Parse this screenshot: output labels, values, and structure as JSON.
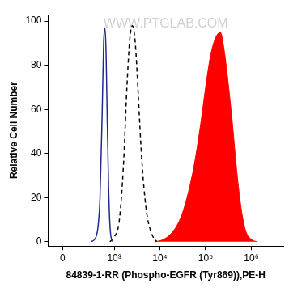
{
  "chart_data": {
    "type": "line",
    "x_label": "84839-1-RR (Phospho-EGFR (Tyr869)),PE-H",
    "y_label": "Relative Cell Number",
    "annotations": [
      "WWW.PTGLAB.COM"
    ],
    "log": "x",
    "grid": false,
    "xlim": [
      -120,
      5000000
    ],
    "xticks": [
      {
        "value": 0,
        "label": "0"
      },
      {
        "value": 1000,
        "label": "10³"
      },
      {
        "value": 10000,
        "label": "10⁴"
      },
      {
        "value": 100000,
        "label": "10⁵"
      },
      {
        "value": 1000000,
        "label": "10⁶"
      }
    ],
    "ylim": [
      -2,
      103
    ],
    "yticks": [
      0,
      20,
      40,
      60,
      80,
      100
    ],
    "series": [
      {
        "type": "line",
        "color": "#1f2a8c",
        "line_style": "solid",
        "x": [
          300,
          400,
          480,
          540,
          580,
          620,
          660,
          700,
          750,
          800,
          870,
          950
        ],
        "values": [
          0,
          3,
          20,
          60,
          90,
          97,
          85,
          55,
          25,
          8,
          1,
          0
        ]
      },
      {
        "type": "line",
        "color": "#000000",
        "line_style": "dashed",
        "x": [
          800,
          1000,
          1300,
          1600,
          1900,
          2200,
          2500,
          2900,
          3400,
          4000,
          5000,
          6500,
          8500
        ],
        "values": [
          0,
          2,
          10,
          35,
          70,
          92,
          98,
          90,
          65,
          38,
          15,
          4,
          0
        ]
      },
      {
        "type": "area",
        "color": "#ff0000",
        "line_style": "solid",
        "x": [
          8000,
          12000,
          20000,
          30000,
          45000,
          60000,
          80000,
          100000,
          130000,
          170000,
          210000,
          250000,
          300000,
          380000,
          480000,
          600000,
          750000,
          1000000,
          1300000
        ],
        "values": [
          0,
          1,
          5,
          12,
          25,
          38,
          55,
          70,
          85,
          93,
          95,
          88,
          75,
          55,
          32,
          15,
          5,
          1,
          0
        ]
      }
    ]
  }
}
